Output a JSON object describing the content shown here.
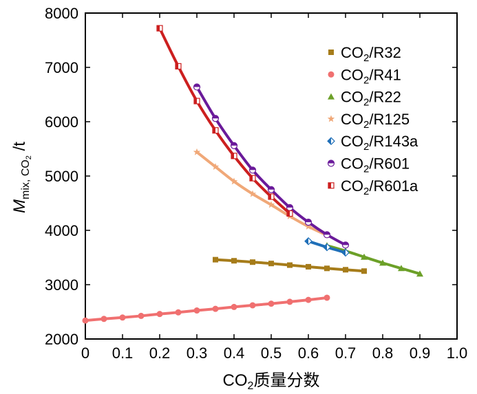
{
  "chart_data": {
    "type": "line",
    "title": "",
    "xlabel": "CO₂质量分数",
    "ylabel": "M_mix,CO₂ /t",
    "ylabel_parts": {
      "main": "M",
      "sub": "mix, CO",
      "sub2": "2",
      "tail": " /t"
    },
    "xlabel_parts": {
      "pre": "CO",
      "sub": "2",
      "post": "质量分数"
    },
    "xlim": [
      0,
      1.0
    ],
    "ylim": [
      2000,
      8000
    ],
    "xticks": [
      0,
      0.1,
      0.2,
      0.3,
      0.4,
      0.5,
      0.6,
      0.7,
      0.8,
      0.9,
      1.0
    ],
    "xtick_labels": [
      "0",
      "0.1",
      "0.2",
      "0.3",
      "0.4",
      "0.5",
      "0.6",
      "0.7",
      "0.8",
      "0.9",
      "1.0"
    ],
    "yticks": [
      2000,
      3000,
      4000,
      5000,
      6000,
      7000,
      8000
    ],
    "ytick_labels": [
      "2000",
      "3000",
      "4000",
      "5000",
      "6000",
      "7000",
      "8000"
    ],
    "legend_position": "top-right",
    "series": [
      {
        "name": "CO2/R32",
        "label_pre": "CO",
        "label_sub": "2",
        "label_post": "/R32",
        "color": "#a67c1a",
        "marker": "square",
        "x": [
          0.35,
          0.4,
          0.45,
          0.5,
          0.55,
          0.6,
          0.65,
          0.7,
          0.75
        ],
        "y": [
          3460,
          3440,
          3415,
          3390,
          3360,
          3330,
          3300,
          3275,
          3250
        ]
      },
      {
        "name": "CO2/R41",
        "label_pre": "CO",
        "label_sub": "2",
        "label_post": "/R41",
        "color": "#f07070",
        "marker": "circle",
        "x": [
          0,
          0.05,
          0.1,
          0.15,
          0.2,
          0.25,
          0.3,
          0.35,
          0.4,
          0.45,
          0.5,
          0.55,
          0.6,
          0.65
        ],
        "y": [
          2340,
          2370,
          2395,
          2425,
          2460,
          2490,
          2525,
          2555,
          2590,
          2620,
          2650,
          2685,
          2720,
          2760
        ]
      },
      {
        "name": "CO2/R22",
        "label_pre": "CO",
        "label_sub": "2",
        "label_post": "/R22",
        "color": "#6ca028",
        "marker": "triangle",
        "x": [
          0.65,
          0.7,
          0.75,
          0.8,
          0.85,
          0.9
        ],
        "y": [
          3720,
          3620,
          3510,
          3400,
          3300,
          3200
        ]
      },
      {
        "name": "CO2/R125",
        "label_pre": "CO",
        "label_sub": "2",
        "label_post": "/R125",
        "color": "#f0a878",
        "marker": "star",
        "x": [
          0.3,
          0.35,
          0.4,
          0.45,
          0.5,
          0.55,
          0.6,
          0.65
        ],
        "y": [
          5440,
          5170,
          4900,
          4670,
          4470,
          4260,
          4070,
          3910
        ]
      },
      {
        "name": "CO2/R143a",
        "label_pre": "CO",
        "label_sub": "2",
        "label_post": "/R143a",
        "color": "#1f6fb8",
        "marker": "diamond",
        "x": [
          0.6,
          0.65,
          0.7
        ],
        "y": [
          3800,
          3690,
          3590
        ]
      },
      {
        "name": "CO2/R601",
        "label_pre": "CO",
        "label_sub": "2",
        "label_post": "/R601",
        "color": "#6a1a9a",
        "marker": "halfcircle",
        "x": [
          0.3,
          0.35,
          0.4,
          0.45,
          0.5,
          0.55,
          0.6,
          0.65,
          0.7
        ],
        "y": [
          6640,
          6060,
          5560,
          5110,
          4750,
          4420,
          4150,
          3920,
          3730
        ]
      },
      {
        "name": "CO2/R601a",
        "label_pre": "CO",
        "label_sub": "2",
        "label_post": "/R601a",
        "color": "#cc1f1f",
        "marker": "halfsquare",
        "x": [
          0.2,
          0.25,
          0.3,
          0.35,
          0.4,
          0.45,
          0.5,
          0.55
        ],
        "y": [
          7720,
          7020,
          6380,
          5840,
          5370,
          4960,
          4620,
          4310
        ]
      }
    ]
  }
}
